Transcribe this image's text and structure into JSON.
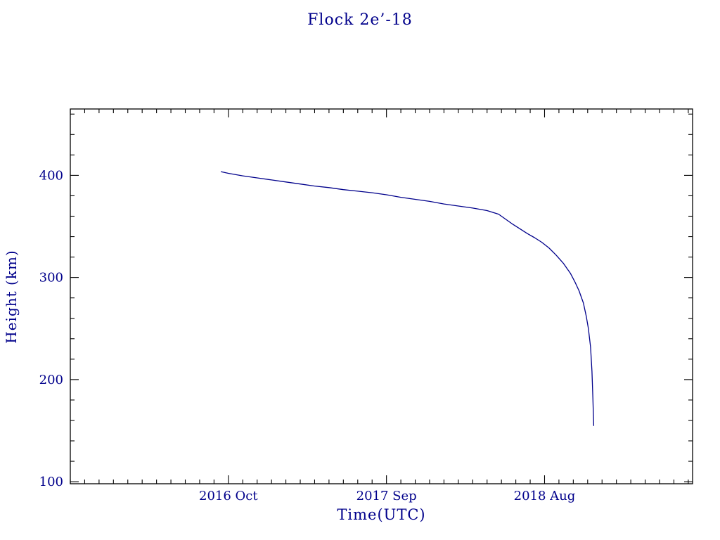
{
  "chart_data": {
    "type": "line",
    "title": "Flock 2e’-18",
    "xlabel": "Time(UTC)",
    "ylabel": "Height (km)",
    "x_unit": "months since 2016 Oct 1",
    "x_range": [
      -11,
      32.3
    ],
    "y_range": [
      98,
      465
    ],
    "x_ticks": [
      {
        "value": 0,
        "label": "2016 Oct"
      },
      {
        "value": 11,
        "label": "2017 Sep"
      },
      {
        "value": 22,
        "label": "2018 Aug"
      }
    ],
    "x_minor_step": 1,
    "y_ticks": [
      {
        "value": 100,
        "label": "100"
      },
      {
        "value": 200,
        "label": "200"
      },
      {
        "value": 300,
        "label": "300"
      },
      {
        "value": 400,
        "label": "400"
      }
    ],
    "y_minor_step": 20,
    "grid": false,
    "legend": "none",
    "line_color": "#00008B",
    "frame_color": "#000000",
    "text_color": "#00008B",
    "series": [
      {
        "name": "height",
        "points": [
          [
            -0.5,
            403.5
          ],
          [
            0,
            402
          ],
          [
            1,
            399.5
          ],
          [
            2,
            397.5
          ],
          [
            3,
            395.5
          ],
          [
            4,
            393.5
          ],
          [
            5,
            391.5
          ],
          [
            6,
            389.5
          ],
          [
            7,
            388
          ],
          [
            8,
            386
          ],
          [
            9,
            384.5
          ],
          [
            10,
            383
          ],
          [
            11,
            381
          ],
          [
            12,
            378.5
          ],
          [
            13,
            376.5
          ],
          [
            14,
            374.5
          ],
          [
            15,
            372
          ],
          [
            16,
            370
          ],
          [
            17,
            368
          ],
          [
            18,
            365.5
          ],
          [
            18.8,
            362
          ],
          [
            19.3,
            357
          ],
          [
            19.8,
            352
          ],
          [
            20.3,
            347.5
          ],
          [
            20.8,
            343
          ],
          [
            21.3,
            339
          ],
          [
            21.8,
            334.5
          ],
          [
            22.3,
            329
          ],
          [
            22.8,
            322
          ],
          [
            23.3,
            314
          ],
          [
            23.8,
            304
          ],
          [
            24.1,
            296
          ],
          [
            24.4,
            287
          ],
          [
            24.7,
            275
          ],
          [
            24.9,
            262
          ],
          [
            25.05,
            250
          ],
          [
            25.2,
            232
          ],
          [
            25.3,
            208
          ],
          [
            25.36,
            182
          ],
          [
            25.42,
            155
          ]
        ]
      }
    ]
  }
}
